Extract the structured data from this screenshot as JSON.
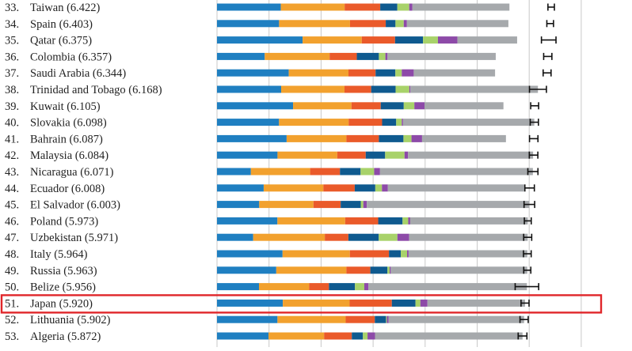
{
  "colors": {
    "segments": [
      "#1f7fc1",
      "#f2a12e",
      "#ea5a2a",
      "#0f5a8f",
      "#a8d26a",
      "#8d4aa8",
      "#a6a9ac"
    ],
    "gridline": "#c9c9c9",
    "error_bar": "#111111",
    "label_text": "#222222",
    "highlight_border": "#e0262a"
  },
  "chart_data": {
    "type": "bar",
    "orientation": "horizontal",
    "stacked": true,
    "segment_order": [
      "blue",
      "orange",
      "red",
      "dark-blue",
      "green",
      "purple",
      "gray"
    ],
    "highlighted_row": "51. Japan (5.920)",
    "rows": [
      {
        "rank": "33.",
        "country": "Taiwan (6.422)",
        "score": 6.422,
        "segments": [
          1.226,
          1.227,
          0.684,
          0.329,
          0.228,
          0.062,
          1.864
        ],
        "ci": [
          6.36,
          6.484
        ]
      },
      {
        "rank": "34.",
        "country": "Spain (6.403)",
        "score": 6.403,
        "segments": [
          1.193,
          1.363,
          0.687,
          0.187,
          0.159,
          0.061,
          1.95
        ],
        "ci": [
          6.339,
          6.467
        ]
      },
      {
        "rank": "35.",
        "country": "Qatar (6.375)",
        "score": 6.375,
        "segments": [
          1.645,
          1.137,
          0.64,
          0.537,
          0.287,
          0.375,
          1.147
        ],
        "ci": [
          6.235,
          6.515
        ]
      },
      {
        "rank": "36.",
        "country": "Colombia (6.357)",
        "score": 6.357,
        "segments": [
          0.917,
          1.247,
          0.523,
          0.424,
          0.125,
          0.041,
          2.08
        ],
        "ci": [
          6.278,
          6.436
        ]
      },
      {
        "rank": "37.",
        "country": "Saudi Arabia (6.344)",
        "score": 6.344,
        "segments": [
          1.379,
          1.147,
          0.522,
          0.38,
          0.123,
          0.23,
          1.563
        ],
        "ci": [
          6.268,
          6.42
        ]
      },
      {
        "rank": "38.",
        "country": "Trinidad and Tobago (6.168)",
        "score": 6.168,
        "segments": [
          1.233,
          1.217,
          0.513,
          0.469,
          0.264,
          0.021,
          2.451
        ],
        "ci": [
          6.005,
          6.331
        ]
      },
      {
        "rank": "39.",
        "country": "Kuwait (6.105)",
        "score": 6.105,
        "segments": [
          1.462,
          1.123,
          0.562,
          0.442,
          0.204,
          0.195,
          1.517
        ],
        "ci": [
          6.029,
          6.181
        ]
      },
      {
        "rank": "40.",
        "country": "Slovakia (6.098)",
        "score": 6.098,
        "segments": [
          1.192,
          1.338,
          0.643,
          0.271,
          0.107,
          0.024,
          2.523
        ],
        "ci": [
          6.019,
          6.177
        ]
      },
      {
        "rank": "41.",
        "country": "Bahrain (6.087)",
        "score": 6.087,
        "segments": [
          1.338,
          1.148,
          0.625,
          0.472,
          0.155,
          0.203,
          1.612
        ],
        "ci": [
          6.006,
          6.168
        ]
      },
      {
        "rank": "42.",
        "country": "Malaysia (6.084)",
        "score": 6.084,
        "segments": [
          1.163,
          1.148,
          0.547,
          0.373,
          0.373,
          0.067,
          2.404
        ],
        "ci": [
          6.002,
          6.166
        ]
      },
      {
        "rank": "43.",
        "country": "Nicaragua (6.071)",
        "score": 6.071,
        "segments": [
          0.651,
          1.139,
          0.573,
          0.396,
          0.261,
          0.113,
          2.938
        ],
        "ci": [
          5.974,
          6.168
        ]
      },
      {
        "rank": "44.",
        "country": "Ecuador (6.008)",
        "score": 6.008,
        "segments": [
          0.897,
          1.147,
          0.603,
          0.395,
          0.128,
          0.114,
          2.624
        ],
        "ci": [
          5.917,
          6.099
        ]
      },
      {
        "rank": "45.",
        "country": "El Salvador (6.003)",
        "score": 6.003,
        "segments": [
          0.811,
          1.043,
          0.523,
          0.386,
          0.049,
          0.067,
          3.124
        ],
        "ci": [
          5.901,
          6.105
        ]
      },
      {
        "rank": "46.",
        "country": "Poland (5.973)",
        "score": 5.973,
        "segments": [
          1.161,
          1.302,
          0.635,
          0.468,
          0.109,
          0.038,
          2.26
        ],
        "ci": [
          5.907,
          6.039
        ]
      },
      {
        "rank": "47.",
        "country": "Uzbekistan (5.971)",
        "score": 5.971,
        "segments": [
          0.695,
          1.377,
          0.453,
          0.583,
          0.359,
          0.226,
          2.278
        ],
        "ci": [
          5.894,
          6.048
        ]
      },
      {
        "rank": "48.",
        "country": "Italy (5.964)",
        "score": 5.964,
        "segments": [
          1.26,
          1.293,
          0.752,
          0.227,
          0.121,
          0.029,
          2.282
        ],
        "ci": [
          5.89,
          6.038
        ]
      },
      {
        "rank": "49.",
        "country": "Russia (5.963)",
        "score": 5.963,
        "segments": [
          1.139,
          1.347,
          0.461,
          0.329,
          0.042,
          0.021,
          2.624
        ],
        "ci": [
          5.895,
          6.031
        ]
      },
      {
        "rank": "50.",
        "country": "Belize (5.956)",
        "score": 5.956,
        "segments": [
          0.807,
          0.964,
          0.38,
          0.5,
          0.18,
          0.077,
          3.048
        ],
        "ci": [
          5.73,
          6.182
        ]
      },
      {
        "rank": "51.",
        "country": "Japan (5.920)",
        "score": 5.92,
        "segments": [
          1.265,
          1.284,
          0.811,
          0.455,
          0.093,
          0.137,
          1.875
        ],
        "ci": [
          5.843,
          5.997
        ]
      },
      {
        "rank": "52.",
        "country": "Lithuania (5.902)",
        "score": 5.902,
        "segments": [
          1.162,
          1.311,
          0.56,
          0.215,
          0.016,
          0.035,
          2.603
        ],
        "ci": [
          5.823,
          5.981
        ]
      },
      {
        "rank": "53.",
        "country": "Algeria (5.872)",
        "score": 5.872,
        "segments": [
          0.99,
          1.068,
          0.533,
          0.213,
          0.089,
          0.144,
          2.835
        ],
        "ci": [
          5.788,
          5.956
        ]
      }
    ],
    "xlim": [
      0,
      7.2
    ],
    "gridlines_at": [
      0,
      1,
      2,
      3,
      4,
      5,
      6,
      7
    ],
    "grid": true,
    "legend": "none",
    "title": "",
    "xlabel": "",
    "ylabel": ""
  }
}
